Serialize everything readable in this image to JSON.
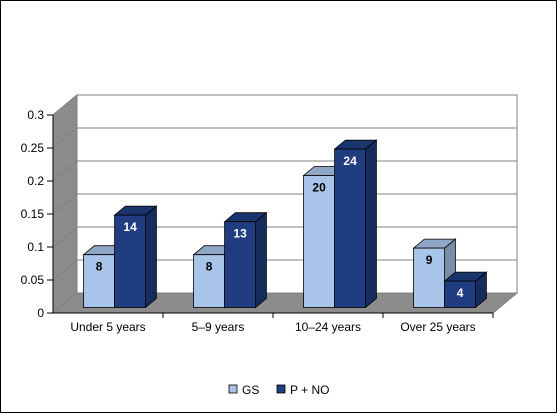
{
  "chart_data": {
    "type": "bar",
    "style": "3d-clustered-column",
    "categories": [
      "Under 5 years",
      "5–9 years",
      "10–24 years",
      "Over 25 years"
    ],
    "series": [
      {
        "name": "GS",
        "values": [
          0.08,
          0.08,
          0.2,
          0.09
        ],
        "labels": [
          "8",
          "8",
          "20",
          "9"
        ],
        "color": "#a8c4e8"
      },
      {
        "name": "P + NO",
        "values": [
          0.14,
          0.13,
          0.24,
          0.04
        ],
        "labels": [
          "14",
          "13",
          "24",
          "4"
        ],
        "color": "#1f3d80"
      }
    ],
    "yticks": [
      "0",
      "0.05",
      "0.1",
      "0.15",
      "0.2",
      "0.25",
      "0.3"
    ],
    "ylim": [
      0,
      0.3
    ],
    "grid": true,
    "legend": "bottom",
    "title": "",
    "xlabel": "",
    "ylabel": ""
  }
}
